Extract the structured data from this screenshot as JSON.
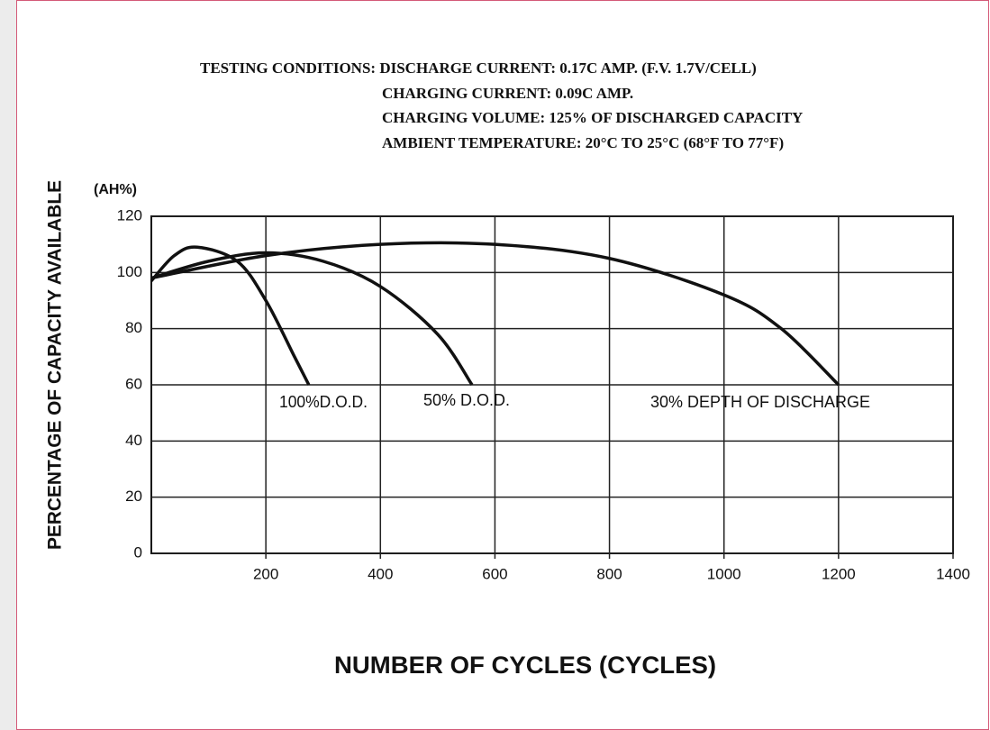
{
  "chart_data": {
    "type": "line",
    "title_lines": [
      "TESTING CONDITIONS: DISCHARGE CURRENT: 0.17C AMP. (F.V. 1.7V/CELL)",
      "CHARGING CURRENT: 0.09C AMP.",
      "CHARGING VOLUME: 125% OF DISCHARGED CAPACITY",
      "AMBIENT TEMPERATURE: 20°C TO 25°C (68°F TO 77°F)"
    ],
    "y_unit": "(AH%)",
    "y_label": "PERCENTAGE OF CAPACITY AVAILABLE",
    "x_label": "NUMBER OF CYCLES (CYCLES)",
    "series": [
      {
        "name": "100%D.O.D.",
        "color": "#111111",
        "x": [
          0,
          40,
          80,
          150,
          200,
          250,
          275
        ],
        "values": [
          97,
          106,
          109,
          104,
          90,
          70,
          60
        ]
      },
      {
        "name": "50% D.O.D.",
        "color": "#111111",
        "x": [
          0,
          100,
          200,
          300,
          400,
          500,
          560
        ],
        "values": [
          98,
          104,
          107,
          104,
          95,
          78,
          60
        ]
      },
      {
        "name": "30% DEPTH OF DISCHARGE",
        "color": "#111111",
        "x": [
          0,
          200,
          400,
          600,
          800,
          1000,
          1100,
          1200
        ],
        "values": [
          98,
          106,
          110,
          110,
          105,
          92,
          80,
          60
        ]
      }
    ],
    "xlim": [
      0,
      1400
    ],
    "xticks": [
      200,
      400,
      600,
      800,
      1000,
      1200,
      1400
    ],
    "ylim": [
      0,
      120
    ],
    "yticks": [
      0,
      20,
      40,
      60,
      80,
      100,
      120
    ],
    "grid": true
  }
}
